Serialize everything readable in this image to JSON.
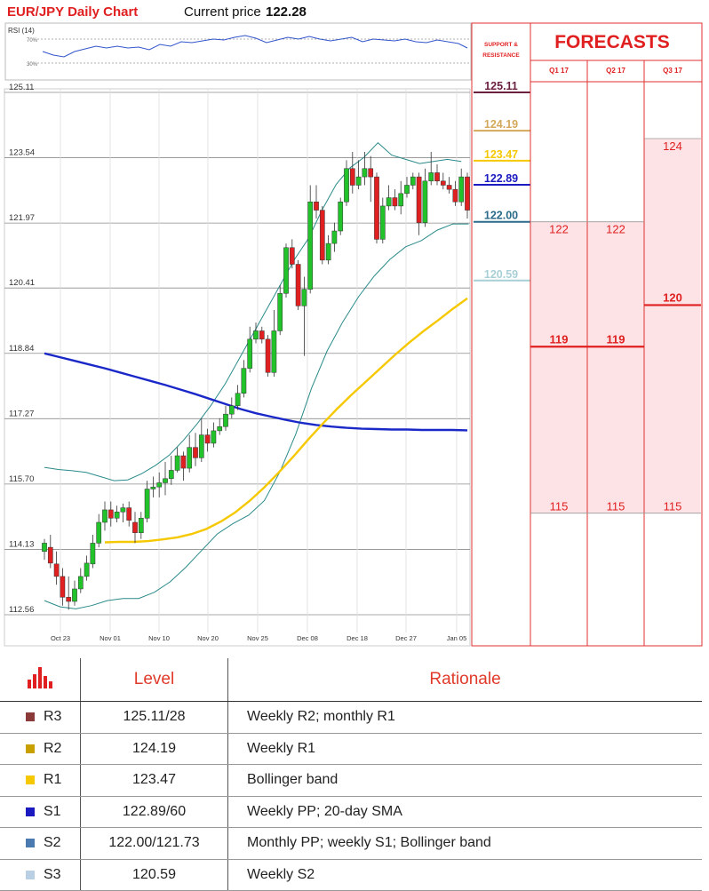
{
  "header": {
    "title": "EUR/JPY Daily Chart",
    "price_label": "Current price",
    "price_value": "122.28"
  },
  "rsi": {
    "label": "RSI (14)",
    "level_high": "70%",
    "level_low": "30%"
  },
  "sr_panel": {
    "title_line1": "SUPPORT &",
    "title_line2": "RESISTANCE"
  },
  "forecasts": {
    "title": "FORECASTS",
    "quarters": [
      "Q1 17",
      "Q2 17",
      "Q3 17"
    ]
  },
  "table": {
    "col_level": "Level",
    "col_rationale": "Rationale"
  },
  "chart_data": [
    {
      "type": "candlestick",
      "title": "EUR/JPY Daily Chart",
      "x_tick_labels": [
        "Oct 23",
        "Nov 01",
        "Nov 10",
        "Nov 20",
        "Nov 25",
        "Dec 08",
        "Dec 18",
        "Dec 27",
        "Jan 05"
      ],
      "y_tick_labels": [
        "125.11",
        "123.54",
        "121.97",
        "120.41",
        "118.84",
        "117.27",
        "115.70",
        "114.13",
        "112.56"
      ],
      "ylim": [
        112.56,
        125.11
      ],
      "grid": true,
      "candles": [
        [
          114.08,
          114.28,
          113.88,
          114.38
        ],
        [
          114.18,
          113.8,
          113.68,
          114.48
        ],
        [
          113.78,
          113.48,
          113.28,
          114.08
        ],
        [
          113.48,
          112.98,
          112.78,
          113.68
        ],
        [
          112.98,
          112.88,
          112.68,
          113.48
        ],
        [
          112.88,
          113.18,
          112.78,
          113.38
        ],
        [
          113.18,
          113.48,
          113.08,
          113.68
        ],
        [
          113.48,
          113.8,
          113.38,
          113.98
        ],
        [
          113.78,
          114.28,
          113.68,
          114.48
        ],
        [
          114.28,
          114.78,
          114.18,
          114.98
        ],
        [
          114.78,
          115.08,
          114.58,
          115.28
        ],
        [
          115.08,
          114.88,
          114.68,
          115.28
        ],
        [
          114.88,
          115.03,
          114.78,
          115.18
        ],
        [
          115.03,
          115.13,
          114.78,
          115.23
        ],
        [
          115.13,
          114.83,
          114.68,
          115.28
        ],
        [
          114.78,
          114.53,
          114.28,
          115.03
        ],
        [
          114.53,
          114.88,
          114.38,
          115.03
        ],
        [
          114.88,
          115.58,
          114.78,
          115.78
        ],
        [
          115.58,
          115.63,
          115.38,
          115.88
        ],
        [
          115.63,
          115.73,
          115.38,
          115.98
        ],
        [
          115.73,
          115.83,
          115.43,
          116.23
        ],
        [
          115.83,
          116.03,
          115.68,
          116.38
        ],
        [
          116.03,
          116.38,
          115.98,
          116.58
        ],
        [
          116.38,
          116.08,
          115.78,
          116.48
        ],
        [
          116.08,
          116.58,
          115.98,
          116.88
        ],
        [
          116.58,
          116.33,
          116.13,
          116.93
        ],
        [
          116.33,
          116.88,
          116.23,
          117.28
        ],
        [
          116.88,
          116.68,
          116.48,
          117.03
        ],
        [
          116.68,
          116.98,
          116.58,
          117.18
        ],
        [
          116.98,
          117.08,
          116.88,
          117.28
        ],
        [
          117.08,
          117.38,
          116.98,
          117.58
        ],
        [
          117.38,
          117.58,
          117.28,
          117.78
        ],
        [
          117.58,
          117.88,
          117.48,
          118.08
        ],
        [
          117.88,
          118.48,
          117.78,
          118.68
        ],
        [
          118.48,
          119.18,
          118.38,
          119.48
        ],
        [
          119.18,
          119.38,
          119.08,
          119.58
        ],
        [
          119.38,
          119.18,
          119.08,
          119.48
        ],
        [
          119.18,
          118.38,
          118.28,
          119.28
        ],
        [
          118.38,
          119.38,
          118.28,
          119.88
        ],
        [
          119.38,
          120.28,
          119.28,
          120.48
        ],
        [
          120.28,
          121.38,
          120.18,
          121.48
        ],
        [
          121.38,
          120.98,
          120.88,
          121.58
        ],
        [
          120.98,
          119.98,
          119.88,
          121.08
        ],
        [
          119.98,
          120.38,
          118.78,
          120.68
        ],
        [
          120.38,
          122.48,
          120.28,
          122.88
        ],
        [
          122.48,
          122.28,
          122.08,
          122.88
        ],
        [
          122.28,
          121.08,
          120.98,
          122.38
        ],
        [
          121.08,
          121.48,
          120.98,
          121.68
        ],
        [
          121.48,
          121.78,
          121.28,
          121.98
        ],
        [
          121.78,
          122.48,
          121.68,
          122.58
        ],
        [
          122.48,
          123.28,
          122.38,
          123.48
        ],
        [
          123.28,
          122.88,
          122.68,
          123.68
        ],
        [
          122.88,
          123.08,
          122.78,
          123.48
        ],
        [
          123.08,
          123.28,
          122.88,
          123.68
        ],
        [
          123.28,
          123.08,
          122.48,
          123.58
        ],
        [
          123.08,
          121.58,
          121.48,
          123.18
        ],
        [
          121.58,
          122.38,
          121.48,
          122.58
        ],
        [
          122.38,
          122.58,
          122.28,
          122.88
        ],
        [
          122.58,
          122.38,
          122.28,
          122.78
        ],
        [
          122.38,
          122.68,
          122.18,
          122.98
        ],
        [
          122.68,
          122.88,
          122.58,
          123.08
        ],
        [
          122.88,
          123.08,
          122.78,
          123.18
        ],
        [
          123.08,
          121.98,
          121.68,
          123.18
        ],
        [
          121.98,
          122.98,
          121.88,
          123.28
        ],
        [
          122.98,
          123.18,
          122.88,
          123.68
        ],
        [
          123.18,
          122.98,
          122.88,
          123.38
        ],
        [
          122.98,
          122.88,
          122.78,
          123.18
        ],
        [
          122.88,
          122.78,
          122.68,
          123.08
        ],
        [
          122.78,
          122.48,
          122.38,
          122.98
        ],
        [
          122.48,
          123.08,
          122.38,
          123.28
        ],
        [
          123.08,
          122.28,
          122.08,
          123.18
        ]
      ],
      "sma_blue": [
        118.84,
        118.75,
        118.66,
        118.57,
        118.48,
        118.38,
        118.28,
        118.18,
        118.08,
        117.97,
        117.86,
        117.74,
        117.62,
        117.5,
        117.4,
        117.32,
        117.24,
        117.17,
        117.12,
        117.08,
        117.05,
        117.03,
        117.02,
        117.01,
        117.01,
        117.0,
        117.0,
        117.0,
        116.99
      ],
      "sma_yellow": [
        114.3,
        114.31,
        114.31,
        114.33,
        114.37,
        114.42,
        114.5,
        114.62,
        114.8,
        115.02,
        115.3,
        115.62,
        115.98,
        116.36,
        116.76,
        117.14,
        117.5,
        117.84,
        118.16,
        118.48,
        118.8,
        119.1,
        119.38,
        119.64,
        119.91,
        120.16
      ],
      "bb_upper": [
        116.1,
        116.05,
        116.02,
        115.98,
        115.88,
        115.78,
        115.8,
        115.95,
        116.15,
        116.4,
        116.75,
        117.15,
        117.6,
        118.1,
        118.7,
        119.3,
        119.9,
        120.5,
        121.1,
        121.6,
        122.3,
        122.9,
        123.3,
        123.55,
        123.9,
        123.6,
        123.5,
        123.4,
        123.45,
        123.5,
        123.45
      ],
      "bb_lower": [
        112.9,
        112.75,
        112.7,
        112.78,
        112.9,
        112.95,
        112.95,
        113.1,
        113.35,
        113.7,
        114.1,
        114.5,
        114.75,
        114.95,
        115.3,
        116.0,
        116.9,
        118.0,
        118.9,
        119.6,
        120.2,
        120.7,
        121.1,
        121.4,
        121.55,
        121.8,
        121.95,
        121.95
      ],
      "rsi_levels": [
        "70%",
        "30%"
      ]
    },
    {
      "type": "table",
      "title": "SUPPORT & RESISTANCE",
      "levels": [
        {
          "label": "125.11",
          "value": 125.11,
          "color": "#6b2040"
        },
        {
          "label": "124.19",
          "value": 124.19,
          "color": "#d4a85a"
        },
        {
          "label": "123.47",
          "value": 123.47,
          "color": "#f5c800"
        },
        {
          "label": "122.89",
          "value": 122.89,
          "color": "#1a1ac0"
        },
        {
          "label": "122.00",
          "value": 122.0,
          "color": "#2a6a8a"
        },
        {
          "label": "120.59",
          "value": 120.59,
          "color": "#a9cfd6"
        }
      ]
    },
    {
      "type": "table",
      "title": "FORECASTS",
      "columns": [
        "Q1 17",
        "Q2 17",
        "Q3 17"
      ],
      "forecasts": [
        {
          "quarter": "Q1 17",
          "high": "122",
          "mid": "119",
          "low": "115",
          "high_value": 122,
          "mid_value": 119,
          "low_value": 115
        },
        {
          "quarter": "Q2 17",
          "high": "122",
          "mid": "119",
          "low": "115",
          "high_value": 122,
          "mid_value": 119,
          "low_value": 115
        },
        {
          "quarter": "Q3 17",
          "high": "124",
          "mid": "120",
          "low": "115",
          "high_value": 124,
          "mid_value": 120,
          "low_value": 115
        }
      ]
    },
    {
      "type": "table",
      "columns": [
        "",
        "Level",
        "Rationale"
      ],
      "rows": [
        {
          "name": "R3",
          "level": "125.11/28",
          "rationale": "Weekly R2; monthly R1",
          "color": "#8b3a3a"
        },
        {
          "name": "R2",
          "level": "124.19",
          "rationale": "Weekly R1",
          "color": "#c8a000"
        },
        {
          "name": "R1",
          "level": "123.47",
          "rationale": "Bollinger band",
          "color": "#f5c800"
        },
        {
          "name": "S1",
          "level": "122.89/60",
          "rationale": "Weekly PP; 20-day SMA",
          "color": "#1a1ac0"
        },
        {
          "name": "S2",
          "level": "122.00/121.73",
          "rationale": "Monthly PP; weekly S1; Bollinger band",
          "color": "#4a7ab0"
        },
        {
          "name": "S3",
          "level": "120.59",
          "rationale": "Weekly S2",
          "color": "#b8cfe4"
        }
      ]
    }
  ],
  "colors": {
    "up": "#22c32a",
    "down": "#e02020",
    "border_red": "#e03030",
    "forecast_fill": "#fde3e6"
  }
}
